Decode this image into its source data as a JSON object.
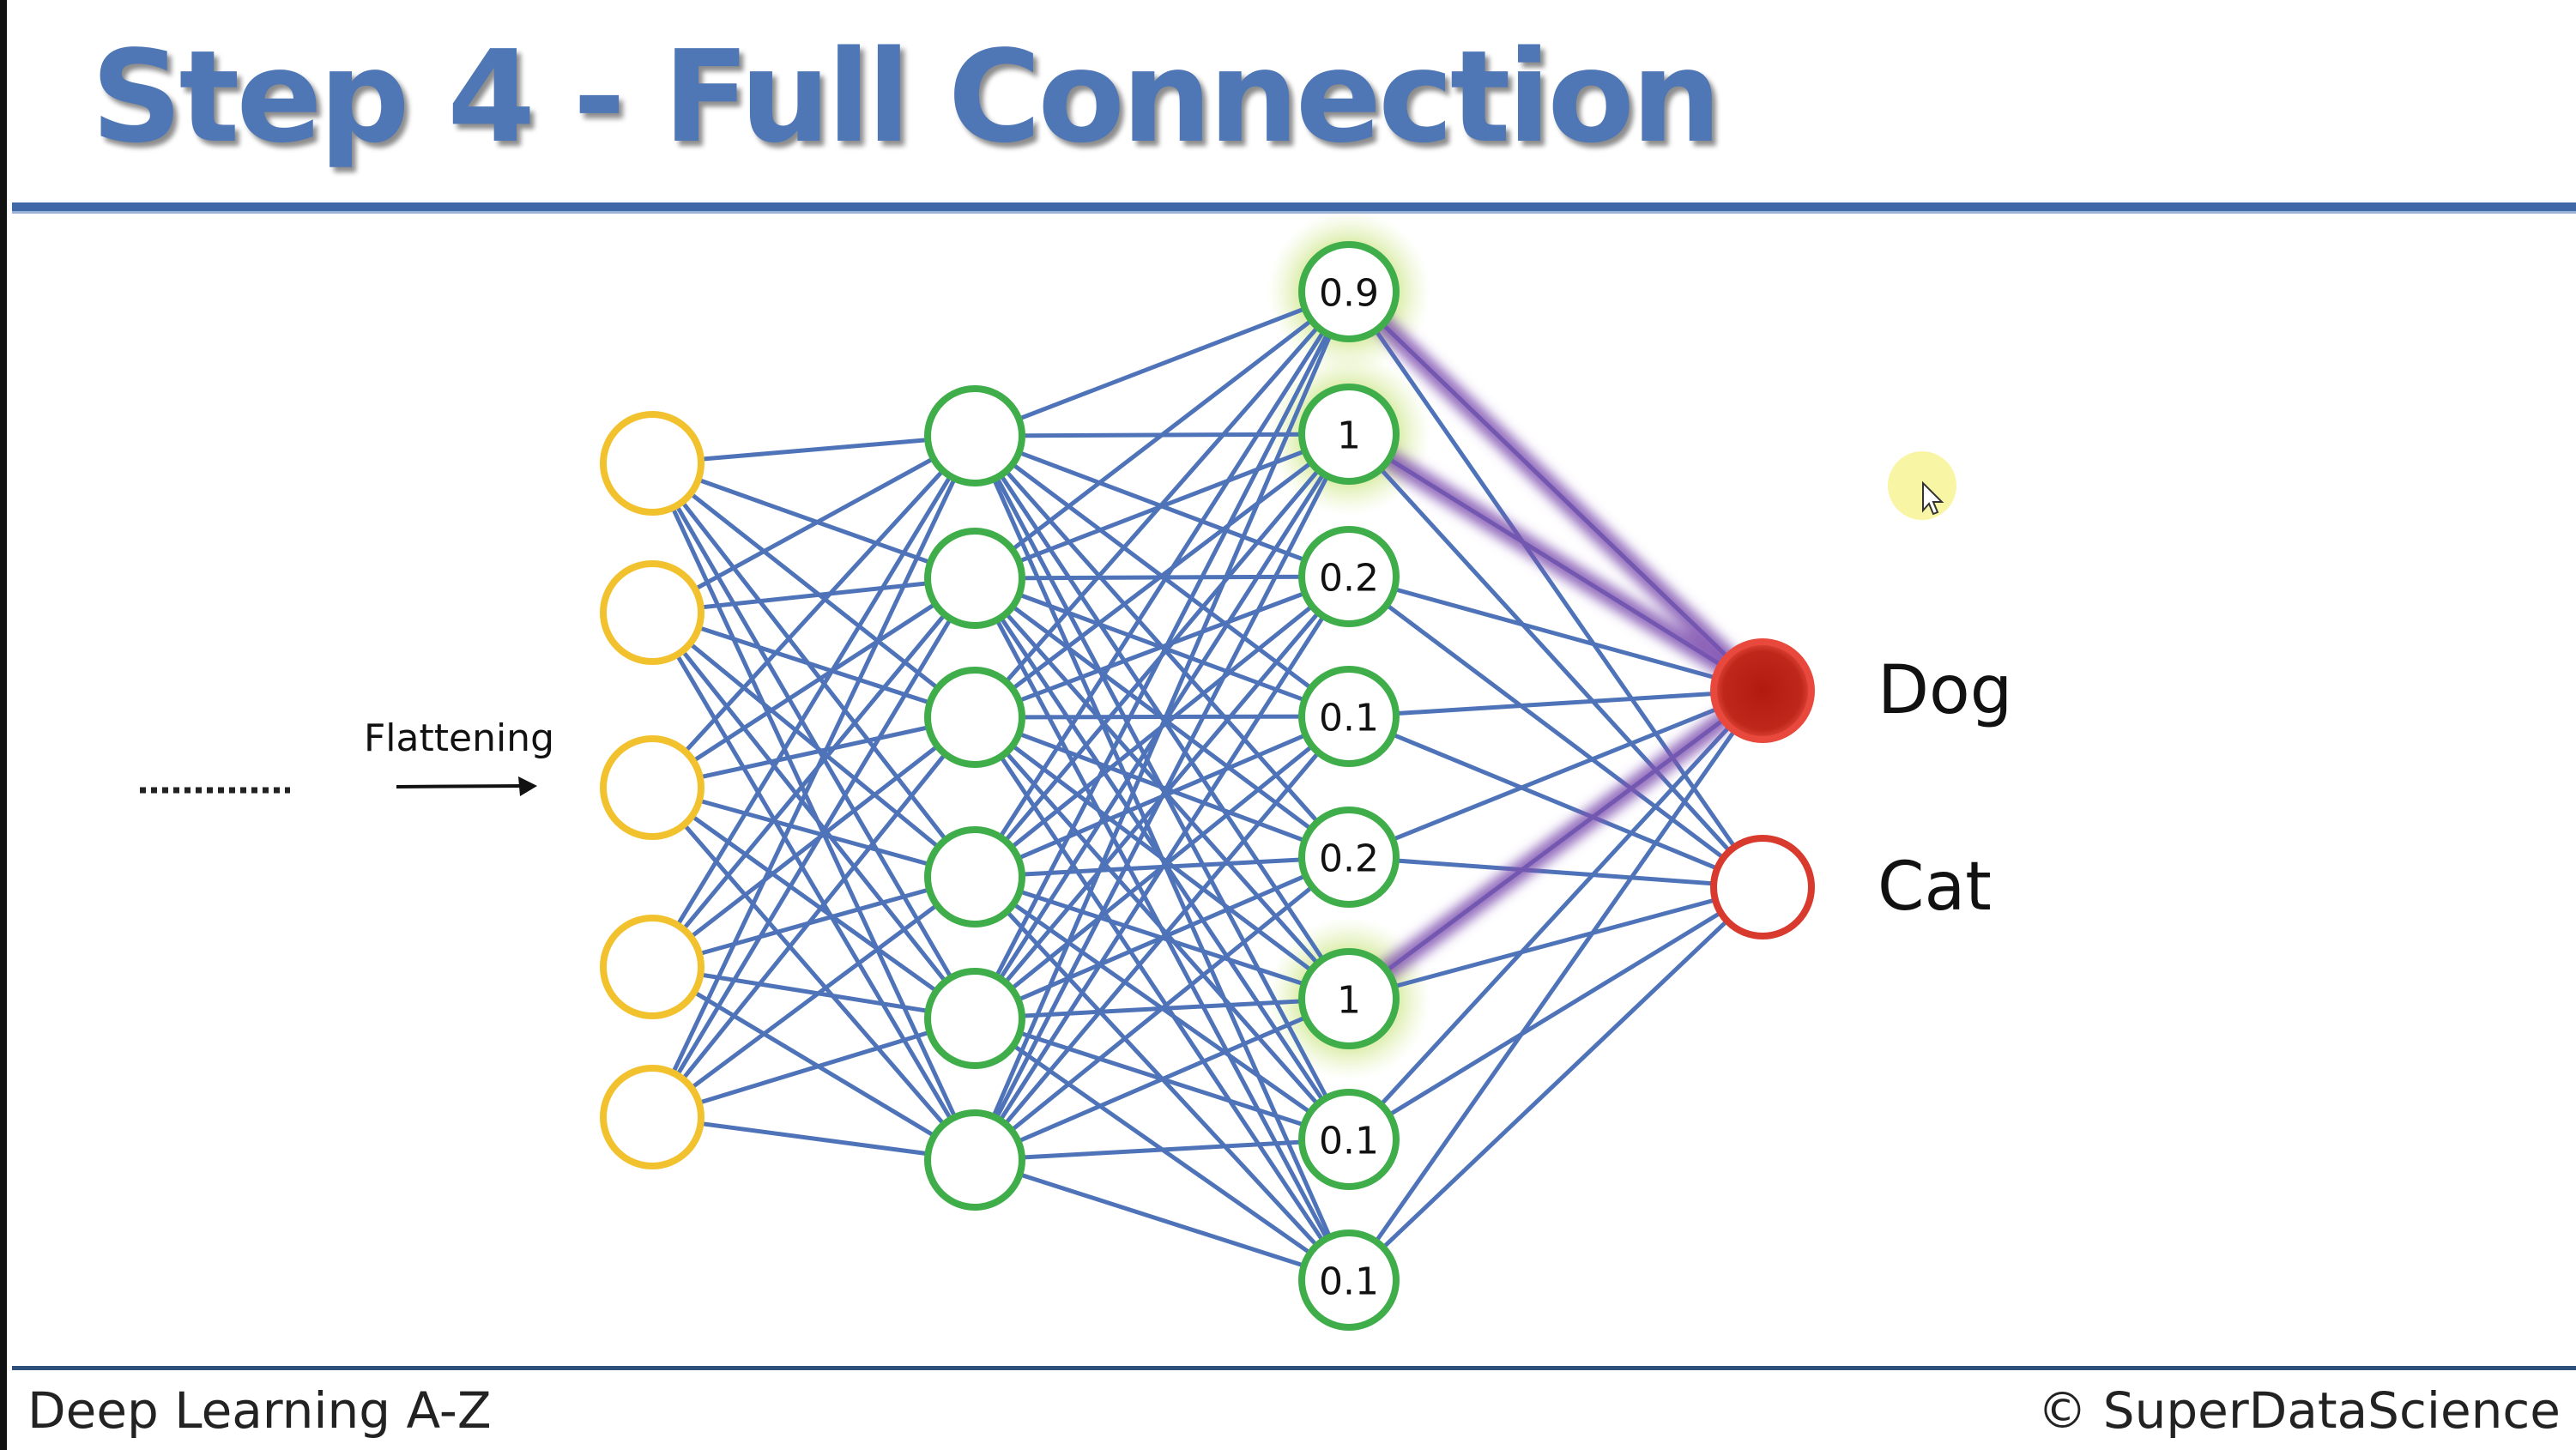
{
  "slide": {
    "title": "Step 4 - Full Connection",
    "footer_left": "Deep Learning A-Z",
    "footer_right": "© SuperDataScience"
  },
  "diagram": {
    "flattening_label": "Flattening",
    "input_layer_count": 5,
    "hidden_layer_count": 6,
    "neuron_values": [
      "0.9",
      "1",
      "0.2",
      "0.1",
      "0.2",
      "1",
      "0.1",
      "0.1"
    ],
    "highlighted_neurons": [
      0,
      1,
      5
    ],
    "outputs": [
      {
        "label": "Dog",
        "active": true
      },
      {
        "label": "Cat",
        "active": false
      }
    ]
  },
  "colors": {
    "title": "#4f77b6",
    "input_node": "#f2c12e",
    "hidden_node": "#3fae4a",
    "edge": "#4e73b8",
    "highlight_edge": "#7e4fb0",
    "glow": "#a8d040",
    "dog_output": "#c0271b",
    "cat_output": "#d93a2e",
    "cursor_highlight": "#f7f49a"
  }
}
